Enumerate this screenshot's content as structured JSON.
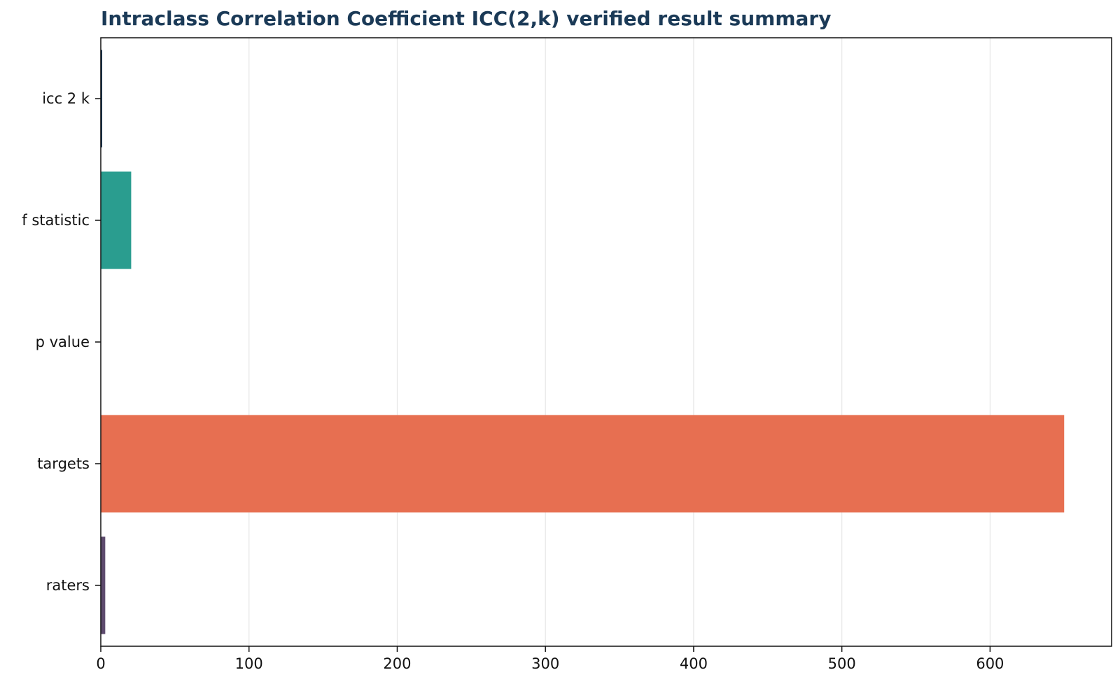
{
  "chart_data": {
    "type": "bar",
    "orientation": "horizontal",
    "title": "Intraclass Correlation Coefficient ICC(2,k) verified result summary",
    "xlabel": "",
    "ylabel": "",
    "categories": [
      "icc 2 k",
      "f statistic",
      "p value",
      "targets",
      "raters"
    ],
    "values": [
      0.95,
      20.5,
      0.0,
      650,
      3
    ],
    "colors": [
      "#1b3a57",
      "#2a9d8f",
      "#e9c46a",
      "#e76f51",
      "#5e4b6e"
    ],
    "xlim": [
      0,
      682
    ],
    "x_ticks": [
      0,
      100,
      200,
      300,
      400,
      500,
      600
    ],
    "grid": "x",
    "legend": "none"
  }
}
